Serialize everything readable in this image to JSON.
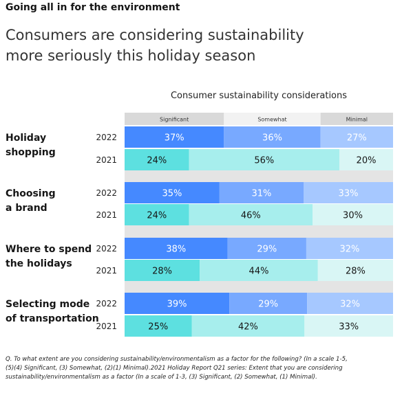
{
  "kicker": "Going all in for the environment",
  "headline": [
    "Consumers are considering sustainability",
    "more seriously this holiday season"
  ],
  "footnote": [
    "Q. To what extent are you considering sustainability/environmentalism as a factor for the following? (In a scale 1-5,",
    "(5)(4) Significant, (3) Somewhat, (2)(1) Minimal).2021 Holiday Report Q21 series: Extent that you are considering",
    "sustainability/environmentalism as a factor (In a scale of 1-3, (3) Significant, (2) Somewhat, (1) Minimal)."
  ],
  "colors": {
    "significant_2022": "#4589ff",
    "somewhat_2022": "#78a9ff",
    "minimal_2022": "#a6c8ff",
    "significant_2021": "#5de0e0",
    "somewhat_2021": "#a7eeed",
    "minimal_2021": "#d9f6f5",
    "connector": "#e4e4e4"
  },
  "chart_data": {
    "type": "bar",
    "stacked": true,
    "orientation": "horizontal",
    "title": "Consumer sustainability considerations",
    "legend": [
      "Significant",
      "Somewhat",
      "Minimal"
    ],
    "legend_position": "top",
    "categories": [
      {
        "label": [
          "Holiday",
          "shopping"
        ],
        "rows": [
          {
            "year": "2022",
            "values": [
              37,
              36,
              27
            ]
          },
          {
            "year": "2021",
            "values": [
              24,
              56,
              20
            ]
          }
        ]
      },
      {
        "label": [
          "Choosing",
          "a brand"
        ],
        "rows": [
          {
            "year": "2022",
            "values": [
              35,
              31,
              33
            ]
          },
          {
            "year": "2021",
            "values": [
              24,
              46,
              30
            ]
          }
        ]
      },
      {
        "label": [
          "Where to spend",
          "the holidays"
        ],
        "rows": [
          {
            "year": "2022",
            "values": [
              38,
              29,
              32
            ]
          },
          {
            "year": "2021",
            "values": [
              28,
              44,
              28
            ]
          }
        ]
      },
      {
        "label": [
          "Selecting mode",
          "of transportation"
        ],
        "rows": [
          {
            "year": "2022",
            "values": [
              39,
              29,
              32
            ]
          },
          {
            "year": "2021",
            "values": [
              25,
              42,
              33
            ]
          }
        ]
      }
    ],
    "value_suffix": "%",
    "xlim": [
      0,
      100
    ]
  }
}
